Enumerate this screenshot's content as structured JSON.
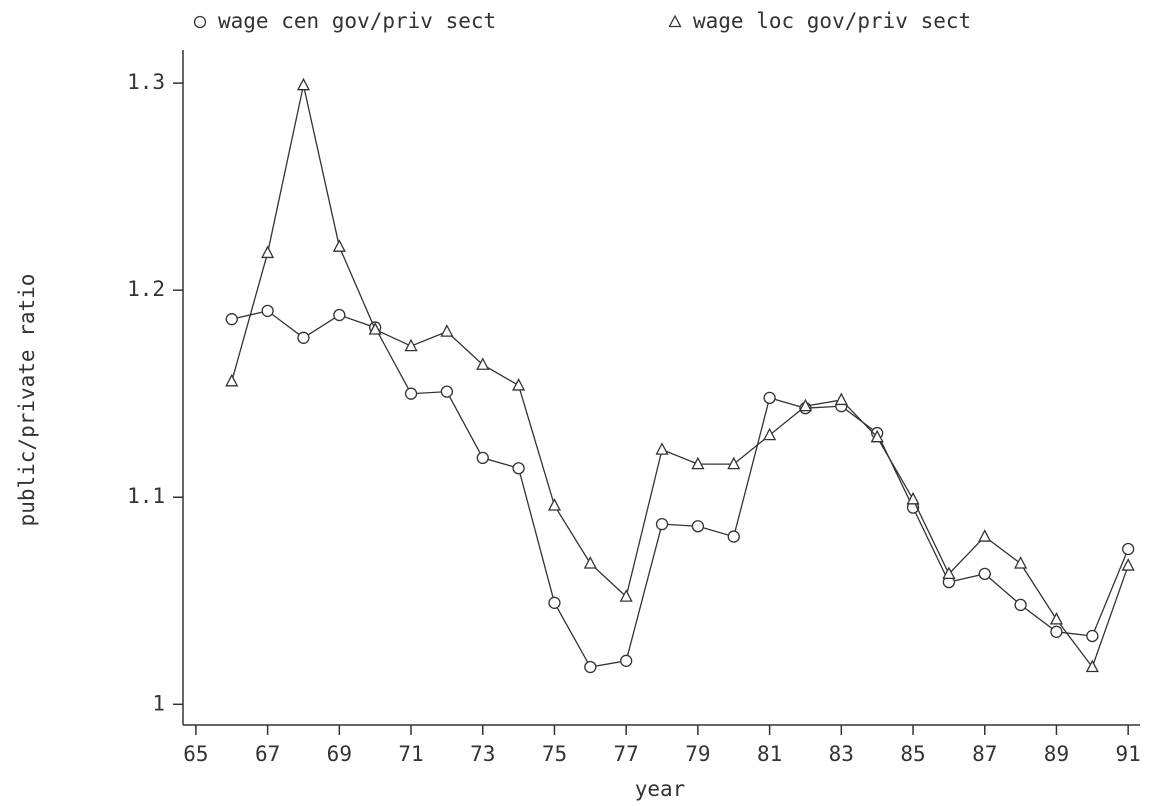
{
  "chart_data": {
    "type": "line",
    "x_label": "year",
    "y_label": "public/private ratio",
    "x": [
      66,
      67,
      68,
      69,
      70,
      71,
      72,
      73,
      74,
      75,
      76,
      77,
      78,
      79,
      80,
      81,
      82,
      83,
      84,
      85,
      86,
      87,
      88,
      89,
      90,
      91
    ],
    "series": [
      {
        "name": "wage cen gov/priv sect",
        "color": "#333333",
        "marker": "circle",
        "values": [
          1.186,
          1.19,
          1.177,
          1.188,
          1.182,
          1.15,
          1.151,
          1.119,
          1.114,
          1.049,
          1.018,
          1.021,
          1.087,
          1.086,
          1.081,
          1.148,
          1.143,
          1.144,
          1.131,
          1.095,
          1.059,
          1.063,
          1.048,
          1.035,
          1.033,
          1.075
        ]
      },
      {
        "name": "wage loc gov/priv sect",
        "color": "#333333",
        "marker": "triangle",
        "values": [
          1.156,
          1.218,
          1.299,
          1.221,
          1.181,
          1.173,
          1.18,
          1.164,
          1.154,
          1.096,
          1.068,
          1.052,
          1.123,
          1.116,
          1.116,
          1.13,
          1.144,
          1.147,
          1.129,
          1.099,
          1.063,
          1.081,
          1.068,
          1.041,
          1.018,
          1.067
        ]
      }
    ],
    "xlim": [
      64.64,
      91.33
    ],
    "ylim": [
      0.99,
      1.316
    ],
    "xticks": [
      65,
      67,
      69,
      71,
      73,
      75,
      77,
      79,
      81,
      83,
      85,
      87,
      89,
      91
    ],
    "yticks": [
      1,
      1.1,
      1.2,
      1.3
    ],
    "legend": "top"
  }
}
